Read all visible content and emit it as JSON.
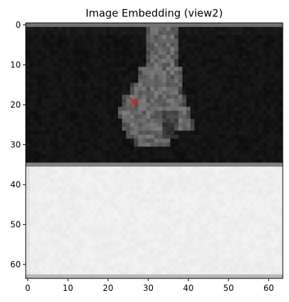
{
  "chart_data": {
    "type": "heatmap",
    "title": "Image Embedding (view2)",
    "xlabel": "",
    "ylabel": "",
    "colormap": "gray",
    "grid": false,
    "xlim": [
      -0.5,
      63.5
    ],
    "ylim": [
      63.5,
      -0.5
    ],
    "x_ticks": [
      0,
      10,
      20,
      30,
      40,
      50,
      60
    ],
    "y_ticks": [
      0,
      10,
      20,
      30,
      40,
      50,
      60
    ],
    "marker": {
      "type": "x",
      "x": 26.5,
      "y": 19.3,
      "color": "#e3151a",
      "label": "×"
    },
    "regions": [
      {
        "name": "dark-background",
        "rows": [
          1,
          34
        ],
        "cols": [
          0,
          63
        ],
        "value": 0.05
      },
      {
        "name": "top-border-row",
        "rows": [
          0,
          0
        ],
        "cols": [
          0,
          63
        ],
        "value": 0.45
      },
      {
        "name": "boundary-row",
        "rows": [
          35,
          35
        ],
        "cols": [
          0,
          63
        ],
        "value": 0.5
      },
      {
        "name": "bright-background",
        "rows": [
          36,
          62
        ],
        "cols": [
          0,
          63
        ],
        "value": 0.95
      },
      {
        "name": "bottom-border-row",
        "rows": [
          63,
          63
        ],
        "cols": [
          0,
          63
        ],
        "value": 0.72
      },
      {
        "name": "object-shape",
        "rows": [
          0,
          30
        ],
        "cols": [
          23,
          42
        ],
        "value": 0.4
      }
    ]
  }
}
